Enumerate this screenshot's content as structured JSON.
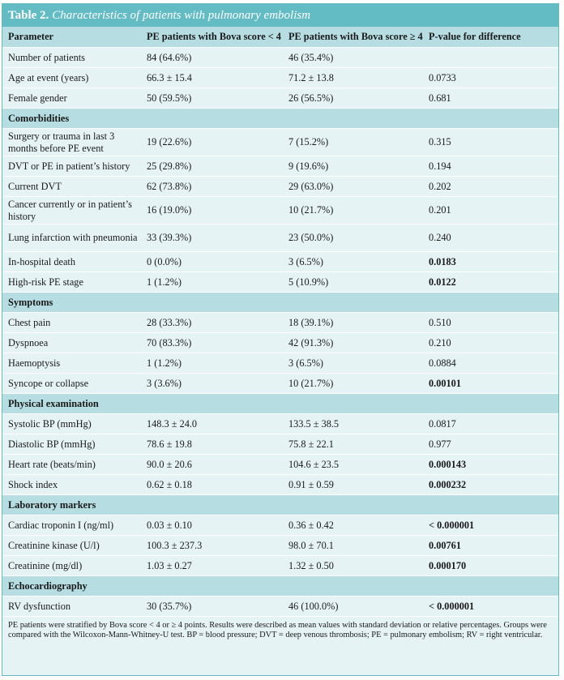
{
  "table": {
    "label": "Table 2.",
    "title": "Characteristics of patients with pulmonary embolism",
    "headers": [
      "Parameter",
      "PE patients with Bova score < 4",
      "PE patients with Bova score ≥ 4",
      "P-value for difference"
    ],
    "rows": [
      {
        "type": "data",
        "cells": [
          "Number of patients",
          "84 (64.6%)",
          "46 (35.4%)",
          ""
        ]
      },
      {
        "type": "data",
        "cells": [
          "Age at event (years)",
          "66.3 ± 15.4",
          "71.2 ± 13.8",
          "0.0733"
        ]
      },
      {
        "type": "data",
        "cells": [
          "Female gender",
          "50 (59.5%)",
          "26 (56.5%)",
          "0.681"
        ]
      },
      {
        "type": "section",
        "label": "Comorbidities"
      },
      {
        "type": "data",
        "tall": true,
        "cells": [
          "Surgery or trauma in last 3 months before PE event",
          "19 (22.6%)",
          "7 (15.2%)",
          "0.315"
        ]
      },
      {
        "type": "data",
        "cells": [
          "DVT or PE in patient’s history",
          "25 (29.8%)",
          "9 (19.6%)",
          "0.194"
        ]
      },
      {
        "type": "data",
        "cells": [
          "Current DVT",
          "62 (73.8%)",
          "29 (63.0%)",
          "0.202"
        ]
      },
      {
        "type": "data",
        "tall": true,
        "cells": [
          "Cancer currently or in patient’s history",
          "16 (19.0%)",
          "10 (21.7%)",
          "0.201"
        ]
      },
      {
        "type": "data",
        "tall": true,
        "cells": [
          "Lung infarction with pneumonia",
          "33 (39.3%)",
          "23 (50.0%)",
          "0.240"
        ]
      },
      {
        "type": "data",
        "bold_p": true,
        "cells": [
          "In-hospital death",
          "0 (0.0%)",
          "3 (6.5%)",
          "0.0183"
        ]
      },
      {
        "type": "data",
        "bold_p": true,
        "cells": [
          "High-risk PE stage",
          "1 (1.2%)",
          "5 (10.9%)",
          "0.0122"
        ]
      },
      {
        "type": "section",
        "label": "Symptoms"
      },
      {
        "type": "data",
        "cells": [
          "Chest pain",
          "28 (33.3%)",
          "18 (39.1%)",
          "0.510"
        ]
      },
      {
        "type": "data",
        "cells": [
          "Dyspnoea",
          "70 (83.3%)",
          "42 (91.3%)",
          "0.210"
        ]
      },
      {
        "type": "data",
        "cells": [
          "Haemoptysis",
          "1 (1.2%)",
          "3 (6.5%)",
          "0.0884"
        ]
      },
      {
        "type": "data",
        "bold_p": true,
        "cells": [
          "Syncope or collapse",
          "3 (3.6%)",
          "10 (21.7%)",
          "0.00101"
        ]
      },
      {
        "type": "section",
        "label": "Physical examination"
      },
      {
        "type": "data",
        "cells": [
          "Systolic BP (mmHg)",
          "148.3 ± 24.0",
          "133.5 ± 38.5",
          "0.0817"
        ]
      },
      {
        "type": "data",
        "cells": [
          "Diastolic BP (mmHg)",
          "78.6 ± 19.8",
          "75.8 ± 22.1",
          "0.977"
        ]
      },
      {
        "type": "data",
        "bold_p": true,
        "cells": [
          "Heart rate (beats/min)",
          "90.0 ± 20.6",
          "104.6 ± 23.5",
          "0.000143"
        ]
      },
      {
        "type": "data",
        "bold_p": true,
        "cells": [
          "Shock index",
          "0.62 ± 0.18",
          "0.91 ± 0.59",
          "0.000232"
        ]
      },
      {
        "type": "section",
        "label": "Laboratory markers"
      },
      {
        "type": "data",
        "bold_p": true,
        "cells": [
          "Cardiac troponin I (ng/ml)",
          "0.03 ± 0.10",
          "0.36 ± 0.42",
          "< 0.000001"
        ]
      },
      {
        "type": "data",
        "bold_p": true,
        "cells": [
          "Creatinine kinase (U/l)",
          "100.3 ± 237.3",
          "98.0 ± 70.1",
          "0.00761"
        ]
      },
      {
        "type": "data",
        "bold_p": true,
        "cells": [
          "Creatinine (mg/dl)",
          "1.03 ± 0.27",
          "1.32 ± 0.50",
          "0.000170"
        ]
      },
      {
        "type": "section",
        "label": "Echocardiography"
      },
      {
        "type": "data",
        "bold_p": true,
        "cells": [
          "RV dysfunction",
          "30 (35.7%)",
          "46 (100.0%)",
          "< 0.000001"
        ]
      }
    ],
    "footnote": "PE patients were stratified by Bova score < 4 or ≥ 4 points. Results were described as mean values with standard deviation or relative percentages. Groups were compared with the Wilcoxon-Mann-Whitney-U test. BP = blood pressure; DVT = deep venous thrombosis; PE = pulmonary embolism; RV = right ventricular."
  },
  "colors": {
    "title_bar": "#63bcc4",
    "header_row": "#b5dde2",
    "body_row": "#e6f3f5",
    "row_separator": "#ffffff"
  }
}
